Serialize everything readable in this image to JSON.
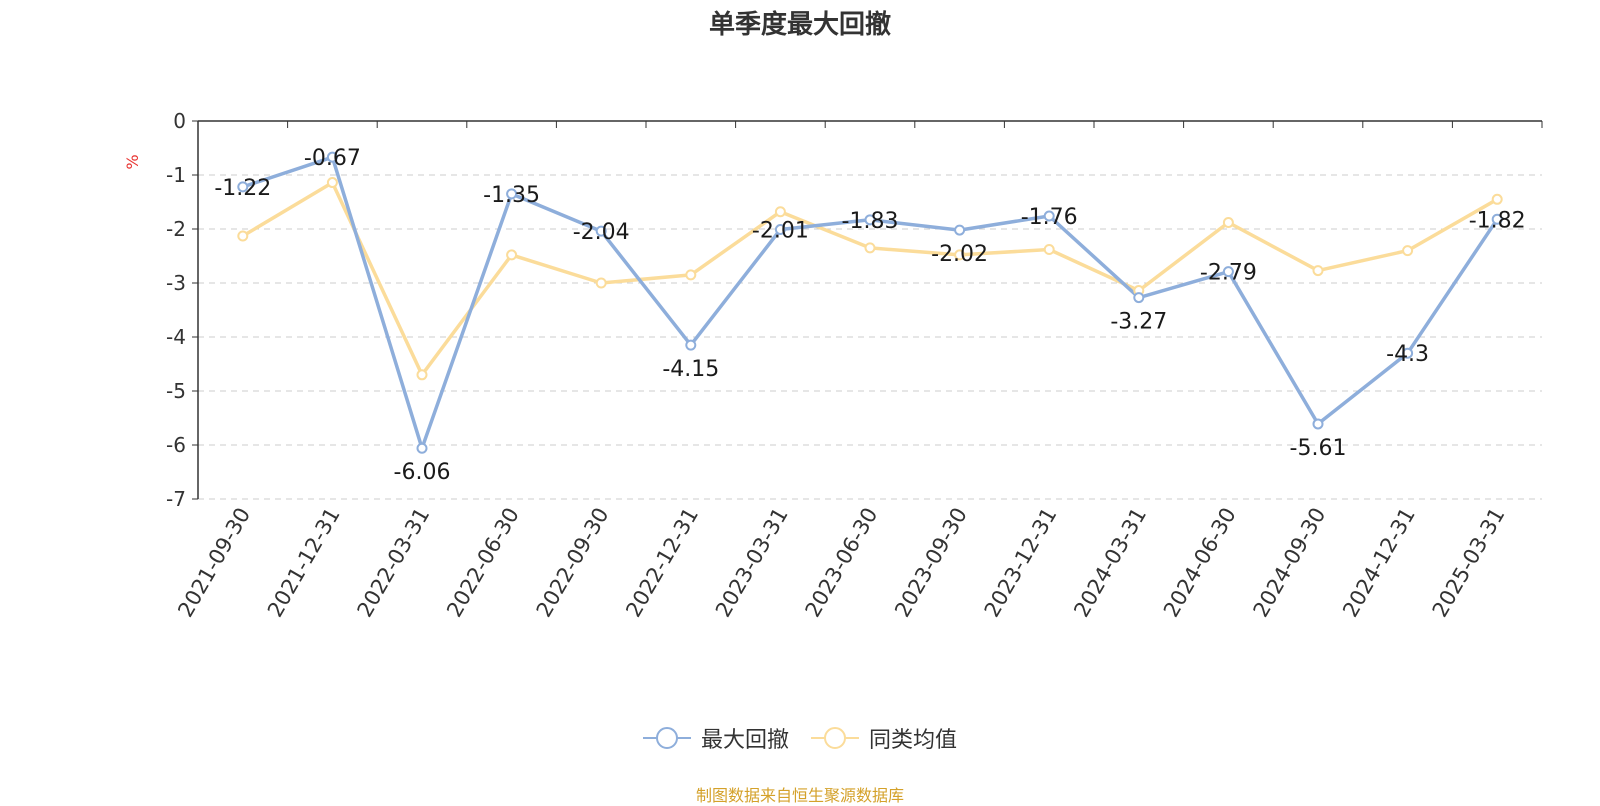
{
  "chart_data": {
    "type": "line",
    "title": "单季度最大回撤",
    "ylabel": "%",
    "ylim": [
      -7,
      0
    ],
    "yticks": [
      "0",
      "-1",
      "-2",
      "-3",
      "-4",
      "-5",
      "-6",
      "-7"
    ],
    "grid": true,
    "legend_position": "bottom",
    "categories": [
      "2021-09-30",
      "2021-12-31",
      "2022-03-31",
      "2022-06-30",
      "2022-09-30",
      "2022-12-31",
      "2023-03-31",
      "2023-06-30",
      "2023-09-30",
      "2023-12-31",
      "2024-03-31",
      "2024-06-30",
      "2024-09-30",
      "2024-12-31",
      "2025-03-31"
    ],
    "series": [
      {
        "name": "最大回撤",
        "color": "#8eaedb",
        "values": [
          -1.22,
          -0.67,
          -6.06,
          -1.35,
          -2.04,
          -4.15,
          -2.01,
          -1.83,
          -2.02,
          -1.76,
          -3.27,
          -2.79,
          -5.61,
          -4.3,
          -1.82
        ],
        "labels": [
          "-1.22",
          "-0.67",
          "-6.06",
          "-1.35",
          "-2.04",
          "-4.15",
          "-2.01",
          "-1.83",
          "-2.02",
          "-1.76",
          "-3.27",
          "-2.79",
          "-5.61",
          "-4.3",
          "-1.82"
        ]
      },
      {
        "name": "同类均值",
        "color": "#fbdc9a",
        "values": [
          -2.13,
          -1.14,
          -4.7,
          -2.48,
          -3.0,
          -2.85,
          -1.68,
          -2.35,
          -2.48,
          -2.38,
          -3.14,
          -1.88,
          -2.77,
          -2.4,
          -1.45
        ]
      }
    ]
  },
  "source": {
    "text": "制图数据来自恒生聚源数据库",
    "color": "#d4a12a"
  },
  "colors": {
    "ylabel": "#e8322f",
    "axis": "#333333",
    "grid": "#cccccc"
  }
}
